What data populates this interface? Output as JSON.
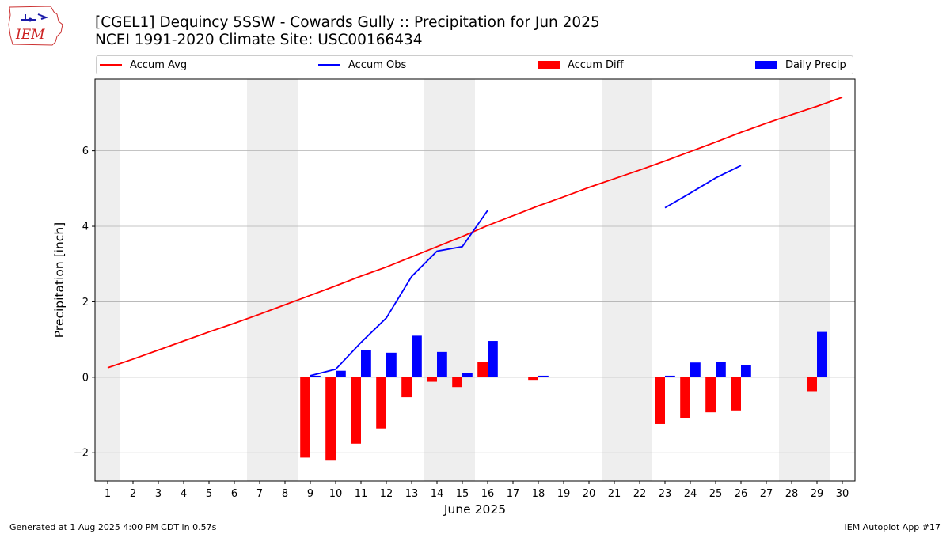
{
  "header": {
    "title_line1": "[CGEL1] Dequincy 5SSW - Cowards Gully :: Precipitation for Jun 2025",
    "title_line2": "NCEI 1991-2020 Climate Site: USC00166434"
  },
  "logo": {
    "text": "IEM"
  },
  "footer": {
    "generated": "Generated at 1 Aug 2025 4:00 PM CDT in 0.57s",
    "app": "IEM Autoplot App #17"
  },
  "colors": {
    "avg": "#ff0000",
    "obs": "#0000ff",
    "diff": "#ff0000",
    "precip": "#0000ff",
    "weekend": "#eeeeee",
    "grid": "#b0b0b0"
  },
  "chart_data": {
    "type": "bar",
    "xlabel": "June 2025",
    "ylabel": "Precipitation [inch]",
    "xlim": [
      0.5,
      30.5
    ],
    "ylim": [
      -2.75,
      7.9
    ],
    "yticks": [
      -2,
      0,
      2,
      4,
      6
    ],
    "grid": "horizontal",
    "legend_position": "top",
    "categories": [
      "1",
      "2",
      "3",
      "4",
      "5",
      "6",
      "7",
      "8",
      "9",
      "10",
      "11",
      "12",
      "13",
      "14",
      "15",
      "16",
      "17",
      "18",
      "19",
      "20",
      "21",
      "22",
      "23",
      "24",
      "25",
      "26",
      "27",
      "28",
      "29",
      "30"
    ],
    "shaded_days": [
      [
        0.5,
        1.5
      ],
      [
        6.5,
        8.5
      ],
      [
        13.5,
        15.5
      ],
      [
        20.5,
        22.5
      ],
      [
        27.5,
        29.5
      ]
    ],
    "series": [
      {
        "name": "Accum Avg",
        "kind": "line",
        "values": [
          0.25,
          0.48,
          0.72,
          0.96,
          1.2,
          1.43,
          1.67,
          1.92,
          2.17,
          2.42,
          2.68,
          2.92,
          3.19,
          3.46,
          3.73,
          4.02,
          4.28,
          4.54,
          4.78,
          5.03,
          5.26,
          5.49,
          5.73,
          5.98,
          6.23,
          6.49,
          6.73,
          6.96,
          7.18,
          7.42
        ]
      },
      {
        "name": "Accum Obs",
        "kind": "line",
        "values": [
          null,
          null,
          null,
          null,
          null,
          null,
          null,
          null,
          0.04,
          0.21,
          0.92,
          1.57,
          2.67,
          3.34,
          3.46,
          4.42,
          null,
          null,
          null,
          null,
          null,
          null,
          4.49,
          4.88,
          5.28,
          5.61,
          null,
          null,
          null,
          null
        ]
      },
      {
        "name": "Accum Diff",
        "kind": "bar",
        "values": [
          null,
          null,
          null,
          null,
          null,
          null,
          null,
          null,
          -2.13,
          -2.21,
          -1.76,
          -1.36,
          -0.53,
          -0.12,
          -0.26,
          0.4,
          null,
          -0.07,
          null,
          null,
          null,
          null,
          -1.24,
          -1.08,
          -0.93,
          -0.88,
          null,
          null,
          -0.37,
          null
        ]
      },
      {
        "name": "Daily Precip",
        "kind": "bar",
        "values": [
          null,
          null,
          null,
          null,
          null,
          null,
          null,
          null,
          0.04,
          0.17,
          0.71,
          0.65,
          1.1,
          0.67,
          0.12,
          0.96,
          null,
          0.04,
          null,
          null,
          null,
          null,
          0.04,
          0.39,
          0.4,
          0.33,
          null,
          null,
          1.2,
          null
        ]
      }
    ]
  }
}
